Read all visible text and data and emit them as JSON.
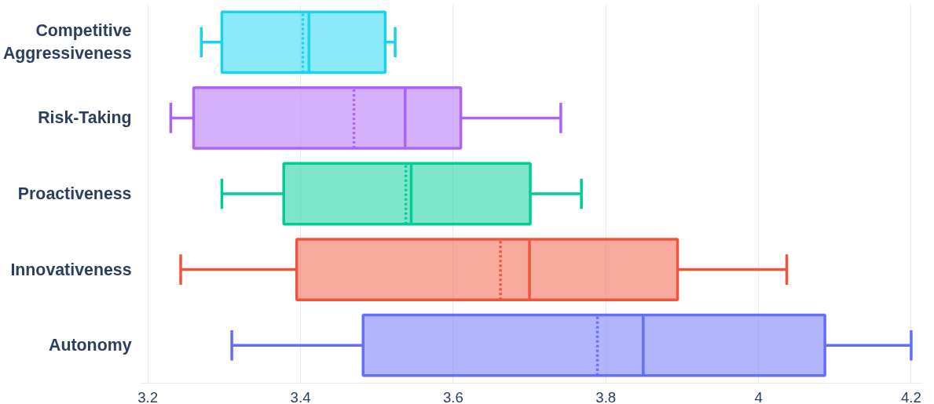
{
  "chart_data": {
    "type": "box",
    "orientation": "horizontal",
    "categories": [
      "Competitive Aggressiveness",
      "Risk-Taking",
      "Proactiveness",
      "Innovativeness",
      "Autonomy"
    ],
    "colors": [
      "#19d3f3",
      "#ab63fa",
      "#00cc96",
      "#ef553b",
      "#636efa"
    ],
    "boxes": [
      {
        "low": 3.27,
        "q1": 3.297,
        "median": 3.411,
        "q3": 3.511,
        "high": 3.524,
        "mean": 3.403
      },
      {
        "low": 3.23,
        "q1": 3.26,
        "median": 3.537,
        "q3": 3.61,
        "high": 3.741,
        "mean": 3.47
      },
      {
        "low": 3.297,
        "q1": 3.378,
        "median": 3.545,
        "q3": 3.701,
        "high": 3.768,
        "mean": 3.538
      },
      {
        "low": 3.243,
        "q1": 3.395,
        "median": 3.7,
        "q3": 3.894,
        "high": 4.037,
        "mean": 3.662
      },
      {
        "low": 3.31,
        "q1": 3.482,
        "median": 3.849,
        "q3": 4.087,
        "high": 4.2,
        "mean": 3.789
      }
    ],
    "xlim": [
      3.19,
      4.215
    ],
    "xticks": [
      3.2,
      3.4,
      3.6,
      3.8,
      4,
      4.2
    ],
    "grid": "x"
  }
}
